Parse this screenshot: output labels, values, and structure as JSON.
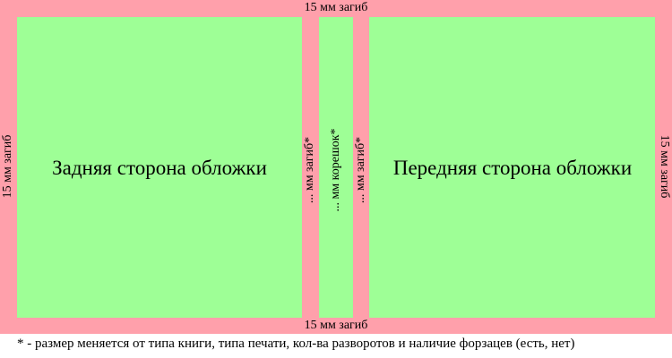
{
  "labels": {
    "top_fold": "15 мм загиб",
    "bottom_fold": "15 мм загиб",
    "left_fold": "15 мм загиб",
    "right_fold": "15 мм загиб",
    "back_cover": "Задняя сторона обложки",
    "front_cover": "Передняя сторона обложки",
    "left_spine_fold": "... мм загиб*",
    "spine": "... мм корешок*",
    "right_spine_fold": "... мм загиб*"
  },
  "footnote": "* - размер меняется от типа книги, типа печати, кол-ва разворотов и наличие форзацев (есть, нет)",
  "colors": {
    "fold": "#ffa0ab",
    "panel": "#9eff96"
  }
}
